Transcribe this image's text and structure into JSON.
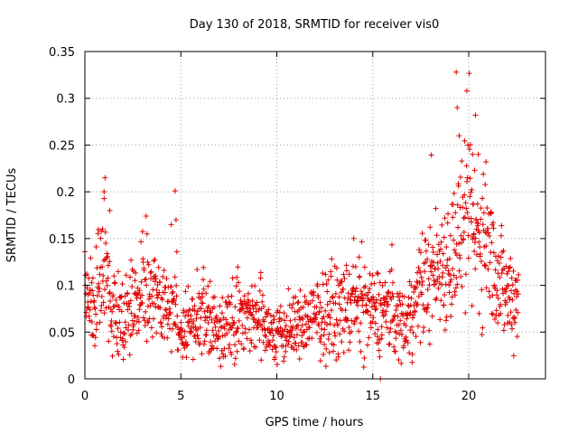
{
  "chart_data": {
    "type": "scatter",
    "title": "Day 130 of 2018, SRMTID for receiver vis0",
    "xlabel": "GPS time / hours",
    "ylabel": "SRMTID / TECUs",
    "xlim": [
      0,
      24
    ],
    "ylim": [
      0,
      0.35
    ],
    "xticks": [
      0,
      5,
      10,
      15,
      20
    ],
    "xtick_labels": [
      "0",
      "5",
      "10",
      "15",
      "20"
    ],
    "yticks": [
      0,
      0.05,
      0.1,
      0.15,
      0.2,
      0.25,
      0.3,
      0.35
    ],
    "ytick_labels": [
      "0",
      "0.05",
      "0.1",
      "0.15",
      "0.2",
      "0.25",
      "0.3",
      "0.35"
    ],
    "grid": true,
    "marker": "+",
    "color": "#e00000",
    "series": [
      {
        "name": "vis0",
        "x_start": 0,
        "x_end": 22.6,
        "step": 0.0167,
        "trend": [
          [
            0,
            0.085
          ],
          [
            0.5,
            0.08
          ],
          [
            1,
            0.11
          ],
          [
            1.5,
            0.08
          ],
          [
            2,
            0.07
          ],
          [
            2.5,
            0.075
          ],
          [
            3,
            0.095
          ],
          [
            3.5,
            0.09
          ],
          [
            4,
            0.08
          ],
          [
            4.5,
            0.075
          ],
          [
            5,
            0.055
          ],
          [
            5.5,
            0.06
          ],
          [
            6,
            0.07
          ],
          [
            6.5,
            0.065
          ],
          [
            7,
            0.05
          ],
          [
            7.5,
            0.065
          ],
          [
            8,
            0.07
          ],
          [
            8.5,
            0.07
          ],
          [
            9,
            0.065
          ],
          [
            9.5,
            0.055
          ],
          [
            10,
            0.045
          ],
          [
            10.5,
            0.05
          ],
          [
            11,
            0.055
          ],
          [
            11.5,
            0.06
          ],
          [
            12,
            0.065
          ],
          [
            12.5,
            0.07
          ],
          [
            13,
            0.07
          ],
          [
            13.5,
            0.075
          ],
          [
            14,
            0.08
          ],
          [
            14.5,
            0.075
          ],
          [
            15,
            0.07
          ],
          [
            15.5,
            0.075
          ],
          [
            16,
            0.07
          ],
          [
            16.5,
            0.06
          ],
          [
            17,
            0.07
          ],
          [
            17.5,
            0.095
          ],
          [
            18,
            0.11
          ],
          [
            18.5,
            0.12
          ],
          [
            19,
            0.13
          ],
          [
            19.5,
            0.15
          ],
          [
            20,
            0.16
          ],
          [
            20.5,
            0.15
          ],
          [
            21,
            0.14
          ],
          [
            21.5,
            0.11
          ],
          [
            22,
            0.09
          ],
          [
            22.6,
            0.09
          ]
        ],
        "notable_points": [
          [
            19.35,
            0.328
          ],
          [
            19.9,
            0.308
          ],
          [
            20.35,
            0.282
          ],
          [
            19.4,
            0.29
          ],
          [
            19.5,
            0.26
          ],
          [
            20.2,
            0.24
          ],
          [
            20.5,
            0.24
          ],
          [
            20.9,
            0.232
          ],
          [
            1.05,
            0.215
          ],
          [
            1.0,
            0.2
          ],
          [
            4.7,
            0.201
          ],
          [
            4.75,
            0.17
          ],
          [
            4.5,
            0.165
          ],
          [
            1.3,
            0.18
          ],
          [
            15.4,
            0.0
          ]
        ]
      }
    ]
  }
}
